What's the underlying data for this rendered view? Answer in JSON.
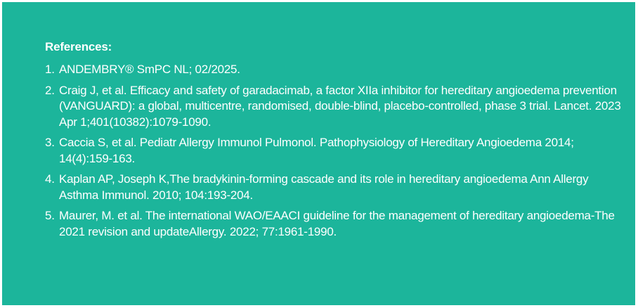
{
  "heading": "References:",
  "references": [
    {
      "number": "1.",
      "text": "ANDEMBRY® SmPC NL; 02/2025."
    },
    {
      "number": "2.",
      "text": "Craig J, et al. Efficacy and safety of garadacimab, a factor XIIa inhibitor for hereditary angioedema prevention (VANGUARD): a global, multicentre, randomised, double-blind, placebo-controlled, phase 3 trial. Lancet. 2023 Apr 1;401(10382):1079-1090."
    },
    {
      "number": "3.",
      "text": "Caccia S, et al. Pediatr Allergy Immunol Pulmonol. Pathophysiology of Hereditary Angioedema 2014; 14(4):159-163."
    },
    {
      "number": "4.",
      "text": "Kaplan AP, Joseph K,The bradykinin-forming cascade and its role in hereditary angioedema Ann Allergy Asthma Immunol. 2010; 104:193-204."
    },
    {
      "number": "5.",
      "text": "Maurer, M. et al. The international WAO/EAACI guideline for the management of hereditary angioedema-The 2021 revision and updateAllergy. 2022; 77:1961-1990."
    }
  ],
  "colors": {
    "background": "#1cb59b",
    "text": "#ffffff"
  }
}
